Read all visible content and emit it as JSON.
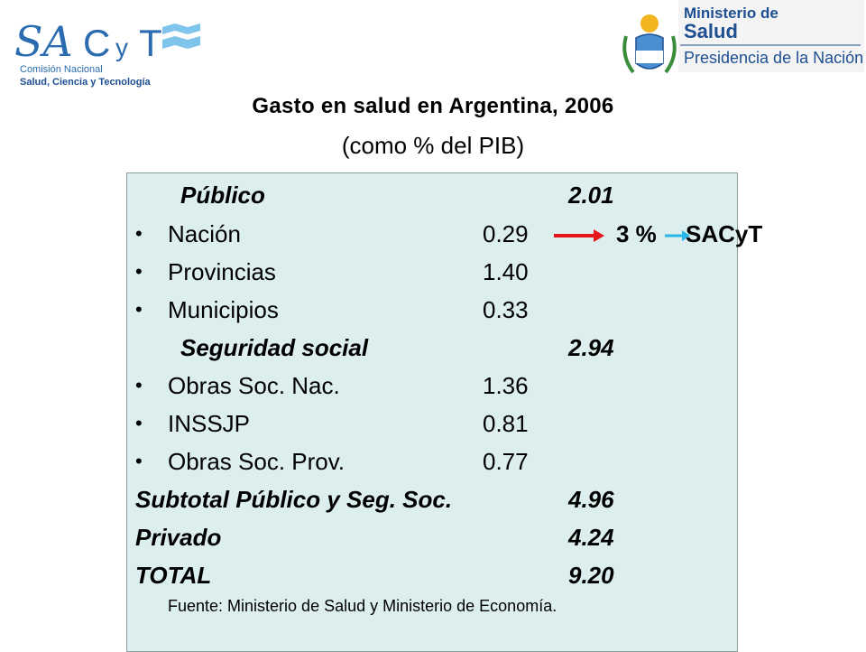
{
  "header": {
    "logo_left": {
      "brand": "SACyT",
      "line1": "Comisión Nacional",
      "line2": "Salud, Ciencia y Tecnología"
    },
    "logo_right": {
      "line1": "Ministerio de",
      "line2": "Salud",
      "line3": "Presidencia de la Nación"
    }
  },
  "slide": {
    "title": "Gasto en salud en Argentina, 2006",
    "subtitle": "(como % del PIB)"
  },
  "table": {
    "rows": [
      {
        "label": "Público",
        "total": "2.01"
      },
      {
        "bullet": "•",
        "label": "Nación",
        "value": "0.29"
      },
      {
        "bullet": "•",
        "label": "Provincias",
        "value": "1.40"
      },
      {
        "bullet": "•",
        "label": "Municipios",
        "value": "0.33"
      },
      {
        "label": "Seguridad social",
        "total": "2.94"
      },
      {
        "bullet": "•",
        "label": "Obras Soc. Nac.",
        "value": "1.36"
      },
      {
        "bullet": "•",
        "label": "INSSJP",
        "value": "0.81"
      },
      {
        "bullet": "•",
        "label": "Obras Soc. Prov.",
        "value": "0.77"
      },
      {
        "label": "Subtotal Público y Seg. Soc.",
        "total": "4.96"
      },
      {
        "label": "Privado",
        "total": "4.24"
      },
      {
        "label": "TOTAL",
        "total": "9.20"
      }
    ],
    "source": "Fuente: Ministerio de Salud y Ministerio de Economía."
  },
  "annotation": {
    "percent": "3 %",
    "agency": "SACyT",
    "arrow_red": "#e8141c",
    "arrow_cyan": "#29b6e8"
  },
  "colors": {
    "panel_bg": "#dceeed",
    "sacyt_blue": "#2b6cb0",
    "ministry_blue": "#1d4f91"
  }
}
